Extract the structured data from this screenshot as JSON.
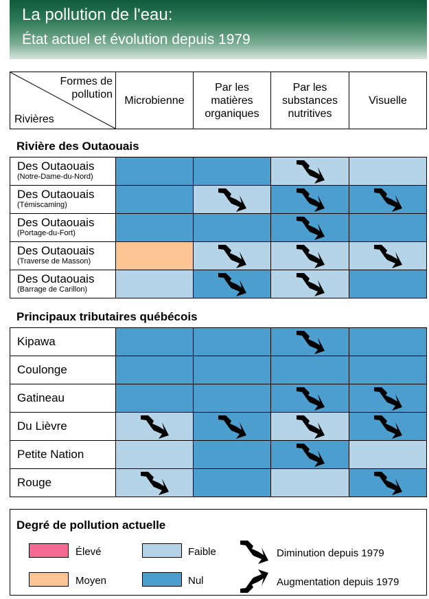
{
  "title": {
    "line1": "La pollution de l'eau:",
    "line2": "État actuel et évolution depuis 1979"
  },
  "header": {
    "corner_top": [
      "Formes de",
      "pollution"
    ],
    "corner_bottom": "Rivières",
    "columns": [
      [
        "Microbienne"
      ],
      [
        "Par les",
        "matières",
        "organiques"
      ],
      [
        "Par les",
        "substances",
        "nutritives"
      ],
      [
        "Visuelle"
      ]
    ]
  },
  "colors": {
    "eleve": "#f56a93",
    "moyen": "#fcc593",
    "faible": "#b6d4e8",
    "nul": "#4c9ece",
    "banner": "#0f5a3c"
  },
  "sections": [
    {
      "title": "Rivière des Outaouais",
      "rows": [
        {
          "name": "Des Outaouais",
          "sub": "(Notre-Dame-du-Nord)",
          "levels": [
            "nul",
            "nul",
            "faible",
            "faible"
          ],
          "trend": [
            "",
            "",
            "diminution",
            ""
          ]
        },
        {
          "name": "Des Outaouais",
          "sub": "(Témiscaming)",
          "levels": [
            "nul",
            "faible",
            "nul",
            "nul"
          ],
          "trend": [
            "",
            "diminution",
            "diminution",
            "diminution"
          ]
        },
        {
          "name": "Des Outaouais",
          "sub": "(Portage-du-Fort)",
          "levels": [
            "nul",
            "nul",
            "nul",
            "nul"
          ],
          "trend": [
            "",
            "",
            "diminution",
            ""
          ]
        },
        {
          "name": "Des Outaouais",
          "sub": "(Traverse de Masson)",
          "levels": [
            "moyen",
            "faible",
            "faible",
            "faible"
          ],
          "trend": [
            "",
            "diminution",
            "diminution",
            "diminution"
          ]
        },
        {
          "name": "Des Outaouais",
          "sub": "(Barrage de Carillon)",
          "levels": [
            "faible",
            "nul",
            "faible",
            "nul"
          ],
          "trend": [
            "",
            "diminution",
            "diminution",
            ""
          ]
        }
      ]
    },
    {
      "title": "Principaux tributaires québécois",
      "rows": [
        {
          "name": "Kipawa",
          "sub": "",
          "levels": [
            "nul",
            "nul",
            "nul",
            "nul"
          ],
          "trend": [
            "",
            "",
            "diminution",
            ""
          ]
        },
        {
          "name": "Coulonge",
          "sub": "",
          "levels": [
            "nul",
            "nul",
            "nul",
            "nul"
          ],
          "trend": [
            "",
            "",
            "",
            ""
          ]
        },
        {
          "name": "Gatineau",
          "sub": "",
          "levels": [
            "nul",
            "nul",
            "nul",
            "nul"
          ],
          "trend": [
            "",
            "",
            "diminution",
            "diminution"
          ]
        },
        {
          "name": "Du Lièvre",
          "sub": "",
          "levels": [
            "faible",
            "nul",
            "faible",
            "nul"
          ],
          "trend": [
            "diminution",
            "diminution",
            "diminution",
            "diminution"
          ]
        },
        {
          "name": "Petite Nation",
          "sub": "",
          "levels": [
            "faible",
            "nul",
            "nul",
            "faible"
          ],
          "trend": [
            "",
            "",
            "diminution",
            ""
          ]
        },
        {
          "name": "Rouge",
          "sub": "",
          "levels": [
            "faible",
            "nul",
            "faible",
            "nul"
          ],
          "trend": [
            "diminution",
            "",
            "",
            "diminution"
          ]
        }
      ]
    }
  ],
  "legend": {
    "title": "Degré de pollution actuelle",
    "eleve": "Élevé",
    "moyen": "Moyen",
    "faible": "Faible",
    "nul": "Nul",
    "diminution": "Diminution depuis 1979",
    "augmentation": "Augmentation depuis 1979"
  }
}
